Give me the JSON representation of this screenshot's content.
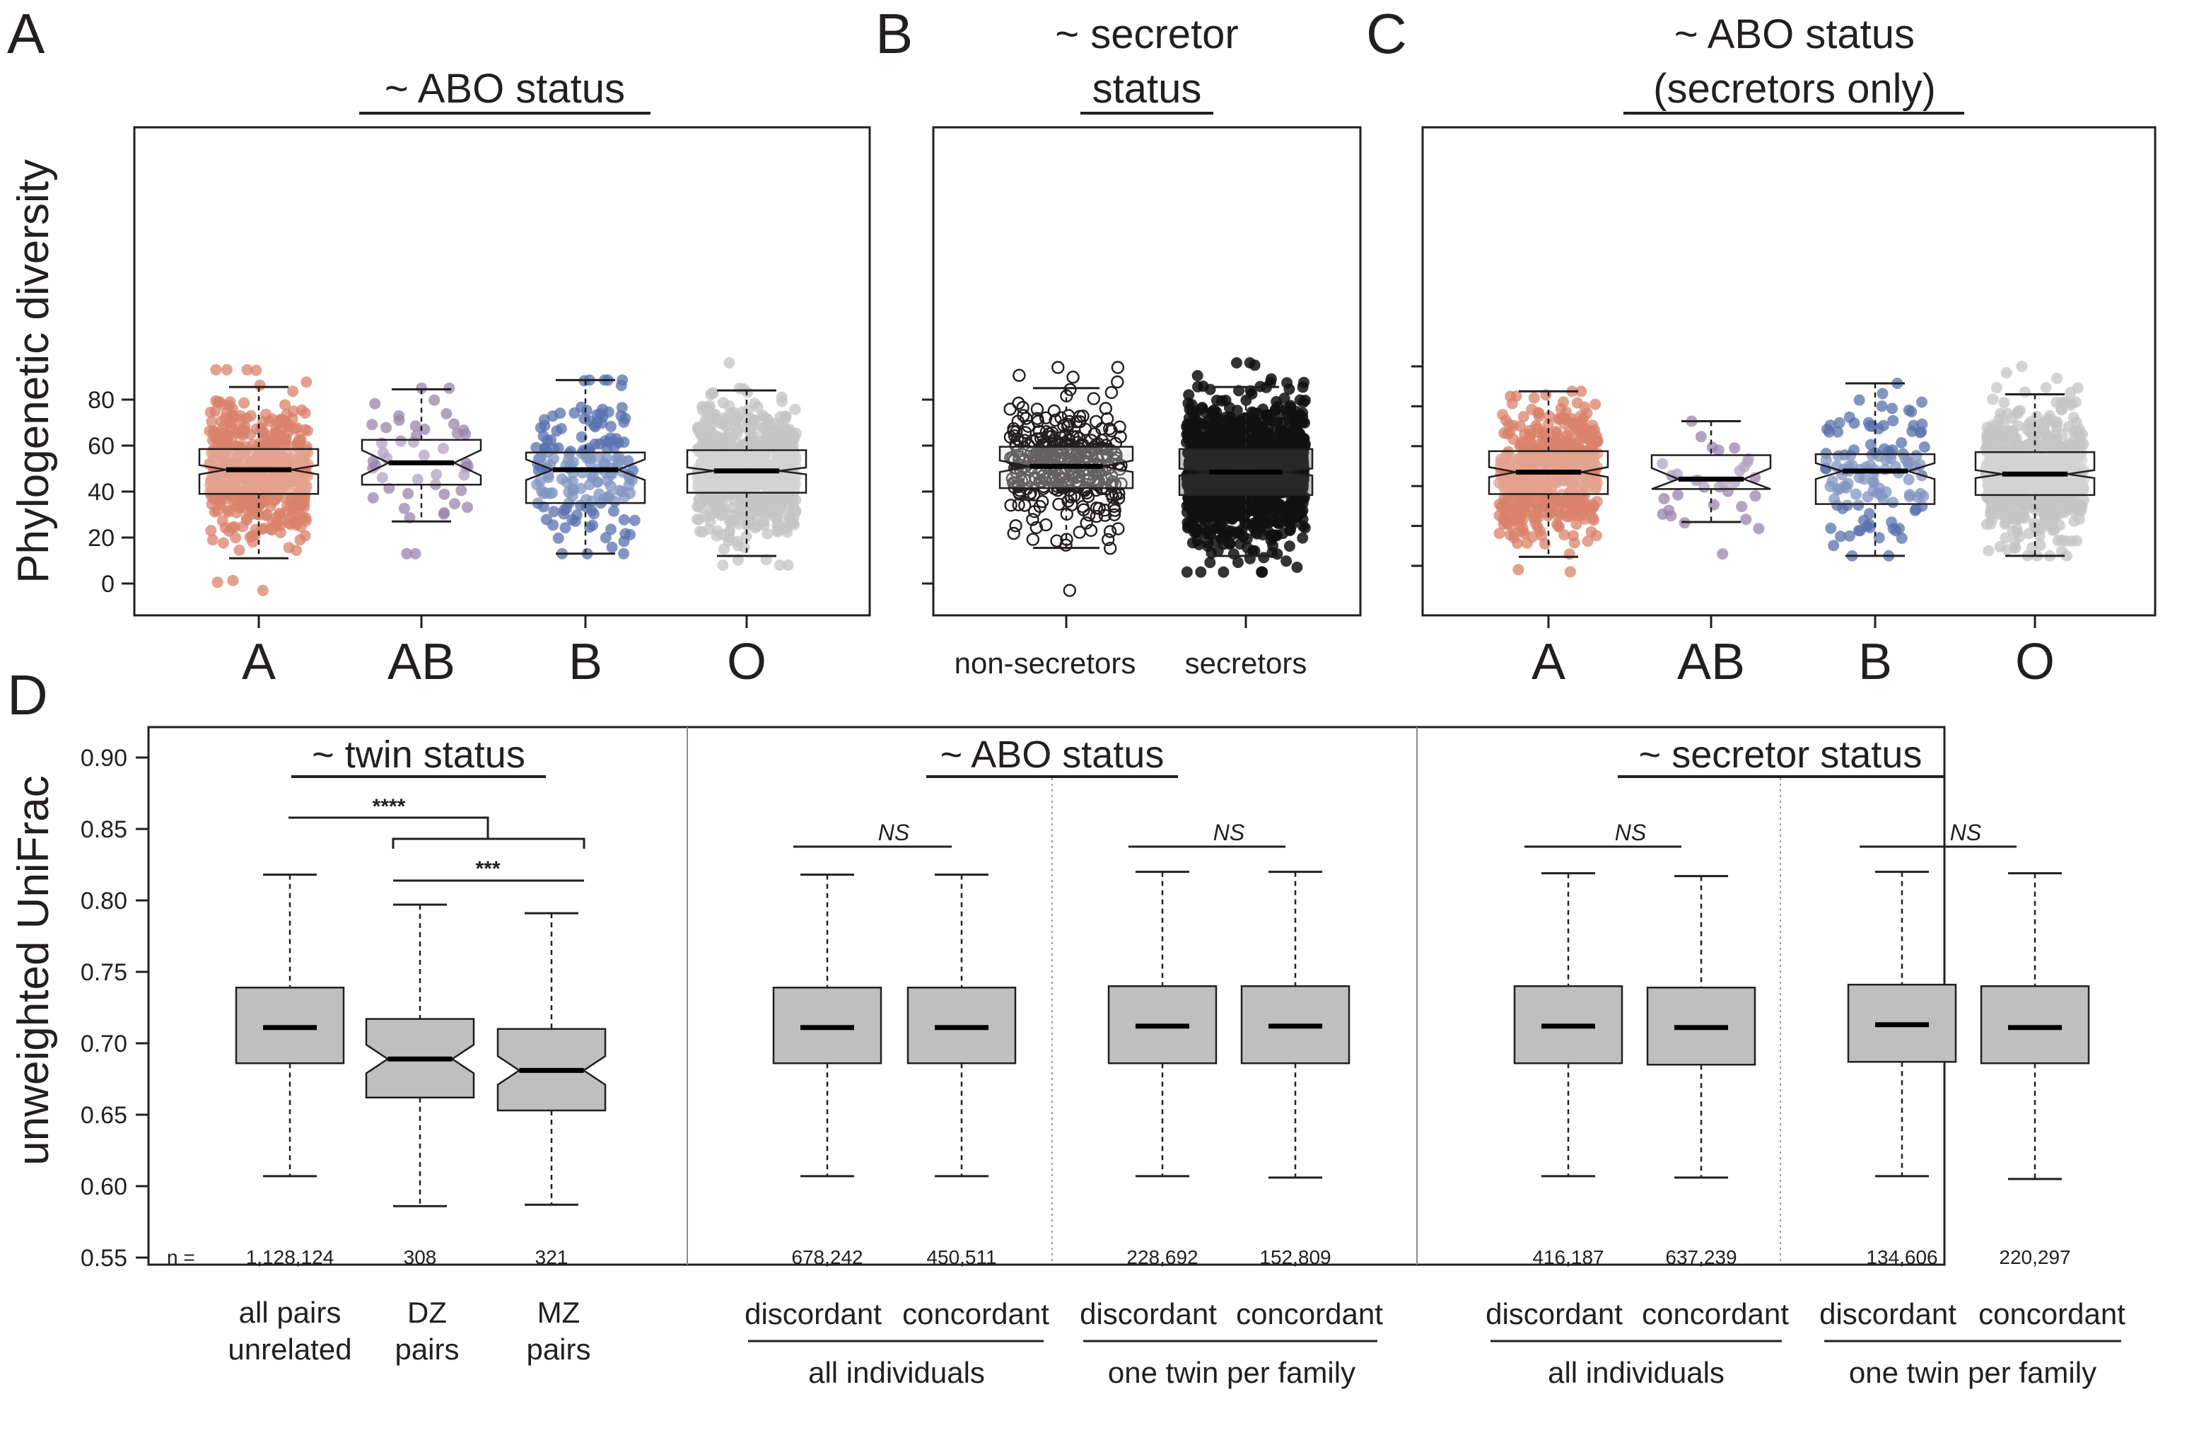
{
  "panels": {
    "A": {
      "letter": "A",
      "title": "~ ABO status",
      "ylabel": "Phylogenetic diversity",
      "yticks": [
        0,
        20,
        40,
        60,
        80
      ]
    },
    "B": {
      "letter": "B",
      "title_line1": "~ secretor",
      "title_line2": "status"
    },
    "C": {
      "letter": "C",
      "title_line1": "~ ABO status",
      "title_line2": "(secretors only)"
    },
    "D": {
      "letter": "D",
      "ylabel": "unweighted UniFrac",
      "yticks": [
        "0.90",
        "0.85",
        "0.80",
        "0.75",
        "0.70",
        "0.65",
        "0.60",
        "0.55"
      ],
      "titles": [
        "~ twin status",
        "~ ABO status",
        "~ secretor status"
      ],
      "n_prefix": "n =",
      "sig_dz_mz": "****",
      "sig_mz": "***",
      "ns": "NS",
      "cat_labels": {
        "all_pairs_1": "all pairs",
        "all_pairs_2": "unrelated",
        "dz_1": "DZ",
        "dz_2": "pairs",
        "mz_1": "MZ",
        "mz_2": "pairs",
        "discordant": "discordant",
        "concordant": "concordant",
        "all_individuals": "all individuals",
        "one_twin": "one twin per family"
      }
    }
  },
  "colors": {
    "A": "#d9826a",
    "AB": "#9a84ab",
    "B": "#5871ad",
    "O": "#c4c4c4",
    "A_label": "#c9563a",
    "AB_label": "#7c6590",
    "B_label": "#3a509a",
    "O_label": "#b8b8b8",
    "box_fill_D": "#bfbfbf",
    "nonsec_label": "#7a7a7a"
  },
  "chart_data": [
    {
      "panel": "A",
      "type": "box",
      "title": "~ ABO status",
      "ylabel": "Phylogenetic diversity",
      "ylim": [
        -5,
        100
      ],
      "categories": [
        "A",
        "AB",
        "B",
        "O"
      ],
      "series": [
        {
          "name": "A",
          "q1": 39,
          "median": 49.5,
          "q3": 58.5,
          "whisker_low": 11,
          "whisker_high": 85.5,
          "notch": [
            47.5,
            51.5
          ],
          "min_point": -3,
          "max_point": 93
        },
        {
          "name": "AB",
          "q1": 43,
          "median": 52.5,
          "q3": 62.5,
          "whisker_low": 27,
          "whisker_high": 84.5,
          "notch": [
            47,
            58
          ],
          "min_point": 13,
          "max_point": 85
        },
        {
          "name": "B",
          "q1": 35,
          "median": 49.5,
          "q3": 57,
          "whisker_low": 13,
          "whisker_high": 88.5,
          "notch": [
            45,
            54
          ],
          "min_point": 13,
          "max_point": 88.5
        },
        {
          "name": "O",
          "q1": 39.5,
          "median": 49,
          "q3": 58,
          "whisker_low": 12,
          "whisker_high": 84,
          "notch": [
            47.5,
            50.5
          ],
          "min_point": 8,
          "max_point": 96
        }
      ]
    },
    {
      "panel": "B",
      "type": "box",
      "title": "~ secretor status",
      "categories": [
        "non-secretors",
        "secretors"
      ],
      "ylim": [
        -5,
        100
      ],
      "series": [
        {
          "name": "non-secretors",
          "q1": 41.5,
          "median": 51,
          "q3": 59.5,
          "whisker_low": 15.5,
          "whisker_high": 85,
          "notch": [
            48.5,
            53.5
          ],
          "min_point": -3,
          "max_point": 94
        },
        {
          "name": "secretors",
          "q1": 38.5,
          "median": 48.5,
          "q3": 58.5,
          "whisker_low": 12,
          "whisker_high": 85.5,
          "notch": [
            47,
            50
          ],
          "min_point": 5,
          "max_point": 96
        }
      ]
    },
    {
      "panel": "C",
      "type": "box",
      "title": "~ ABO status (secretors only)",
      "categories": [
        "A",
        "AB",
        "B",
        "O"
      ],
      "ylim": [
        -5,
        100
      ],
      "series": [
        {
          "name": "A",
          "q1": 36,
          "median": 47,
          "q3": 57.5,
          "whisker_low": 4.5,
          "whisker_high": 87.5,
          "notch": [
            44.5,
            49.5
          ],
          "min_point": -3,
          "max_point": 87.5
        },
        {
          "name": "AB",
          "q1": 38.5,
          "median": 43.5,
          "q3": 55.5,
          "whisker_low": 22,
          "whisker_high": 72.5,
          "notch": [
            38.5,
            49
          ],
          "min_point": 6,
          "max_point": 72.5
        },
        {
          "name": "B",
          "q1": 31,
          "median": 47.5,
          "q3": 56,
          "whisker_low": 5,
          "whisker_high": 91.5,
          "notch": [
            43.5,
            51.5
          ],
          "min_point": 5,
          "max_point": 91.5
        },
        {
          "name": "O",
          "q1": 35.5,
          "median": 46,
          "q3": 57,
          "whisker_low": 5,
          "whisker_high": 86,
          "notch": [
            44,
            48
          ],
          "min_point": 5,
          "max_point": 100
        }
      ]
    },
    {
      "panel": "D",
      "type": "box",
      "ylabel": "unweighted UniFrac",
      "ylim": [
        0.55,
        0.9
      ],
      "categories": [
        "all pairs unrelated",
        "DZ pairs",
        "MZ pairs",
        "ABO discordant (all individuals)",
        "ABO concordant (all individuals)",
        "ABO discordant (one twin per family)",
        "ABO concordant (one twin per family)",
        "secretor discordant (all individuals)",
        "secretor concordant (all individuals)",
        "secretor discordant (one twin per family)",
        "secretor concordant (one twin per family)"
      ],
      "series": [
        {
          "q1": 0.686,
          "median": 0.711,
          "q3": 0.739,
          "whisker_low": 0.607,
          "whisker_high": 0.818,
          "n": "1,128,124"
        },
        {
          "q1": 0.662,
          "median": 0.689,
          "q3": 0.717,
          "whisker_low": 0.586,
          "whisker_high": 0.797,
          "n": "308",
          "notched": true
        },
        {
          "q1": 0.653,
          "median": 0.681,
          "q3": 0.71,
          "whisker_low": 0.587,
          "whisker_high": 0.791,
          "n": "321",
          "notched": true
        },
        {
          "q1": 0.686,
          "median": 0.711,
          "q3": 0.739,
          "whisker_low": 0.607,
          "whisker_high": 0.818,
          "n": "678,242"
        },
        {
          "q1": 0.686,
          "median": 0.711,
          "q3": 0.739,
          "whisker_low": 0.607,
          "whisker_high": 0.818,
          "n": "450,511"
        },
        {
          "q1": 0.686,
          "median": 0.712,
          "q3": 0.74,
          "whisker_low": 0.607,
          "whisker_high": 0.82,
          "n": "228,692"
        },
        {
          "q1": 0.686,
          "median": 0.712,
          "q3": 0.74,
          "whisker_low": 0.606,
          "whisker_high": 0.82,
          "n": "152,809"
        },
        {
          "q1": 0.686,
          "median": 0.712,
          "q3": 0.74,
          "whisker_low": 0.607,
          "whisker_high": 0.819,
          "n": "416,187"
        },
        {
          "q1": 0.685,
          "median": 0.711,
          "q3": 0.739,
          "whisker_low": 0.606,
          "whisker_high": 0.817,
          "n": "637,239"
        },
        {
          "q1": 0.687,
          "median": 0.713,
          "q3": 0.741,
          "whisker_low": 0.607,
          "whisker_high": 0.82,
          "n": "134,606"
        },
        {
          "q1": 0.686,
          "median": 0.711,
          "q3": 0.74,
          "whisker_low": 0.605,
          "whisker_high": 0.819,
          "n": "220,297"
        }
      ],
      "annotations": [
        "****",
        "***",
        "NS",
        "NS",
        "NS",
        "NS"
      ]
    }
  ]
}
